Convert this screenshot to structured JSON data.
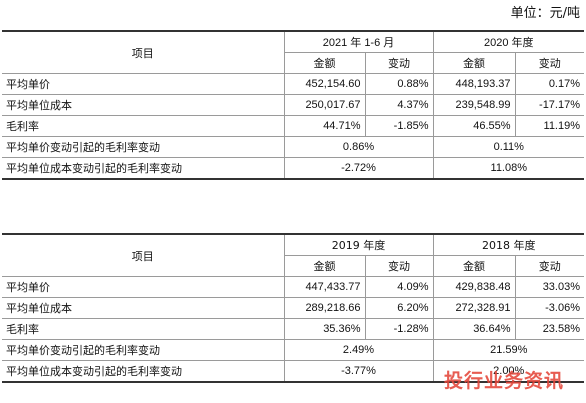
{
  "unit_label": "单位：元/吨",
  "tables": [
    {
      "item_header": "项目",
      "period_a": "2021 年 1-6 月",
      "period_b": "2020 年度",
      "amount_label": "金额",
      "change_label": "变动",
      "rows": [
        {
          "label": "平均单价",
          "a_amount": "452,154.60",
          "a_change": "0.88%",
          "b_amount": "448,193.37",
          "b_change": "0.17%"
        },
        {
          "label": "平均单位成本",
          "a_amount": "250,017.67",
          "a_change": "4.37%",
          "b_amount": "239,548.99",
          "b_change": "-17.17%"
        },
        {
          "label": "毛利率",
          "a_amount": "44.71%",
          "a_change": "-1.85%",
          "b_amount": "46.55%",
          "b_change": "11.19%"
        },
        {
          "label": "平均单价变动引起的毛利率变动",
          "a_value": "0.86%",
          "b_value": "0.11%"
        },
        {
          "label": "平均单位成本变动引起的毛利率变动",
          "a_value": "-2.72%",
          "b_value": "11.08%"
        }
      ]
    },
    {
      "item_header": "项目",
      "period_a": "2019 年度",
      "period_b": "2018 年度",
      "amount_label": "金额",
      "change_label": "变动",
      "rows": [
        {
          "label": "平均单价",
          "a_amount": "447,433.77",
          "a_change": "4.09%",
          "b_amount": "429,838.48",
          "b_change": "33.03%"
        },
        {
          "label": "平均单位成本",
          "a_amount": "289,218.66",
          "a_change": "6.20%",
          "b_amount": "272,328.91",
          "b_change": "-3.06%"
        },
        {
          "label": "毛利率",
          "a_amount": "35.36%",
          "a_change": "-1.28%",
          "b_amount": "36.64%",
          "b_change": "23.58%"
        },
        {
          "label": "平均单价变动引起的毛利率变动",
          "a_value": "2.49%",
          "b_value": "21.59%"
        },
        {
          "label": "平均单位成本变动引起的毛利率变动",
          "a_value": "-3.77%",
          "b_value": "2.00%"
        }
      ]
    }
  ],
  "watermark": "投行业务资讯",
  "colors": {
    "watermark": "#e4463a",
    "rule": "#333333",
    "grid": "#9a9a9a"
  }
}
